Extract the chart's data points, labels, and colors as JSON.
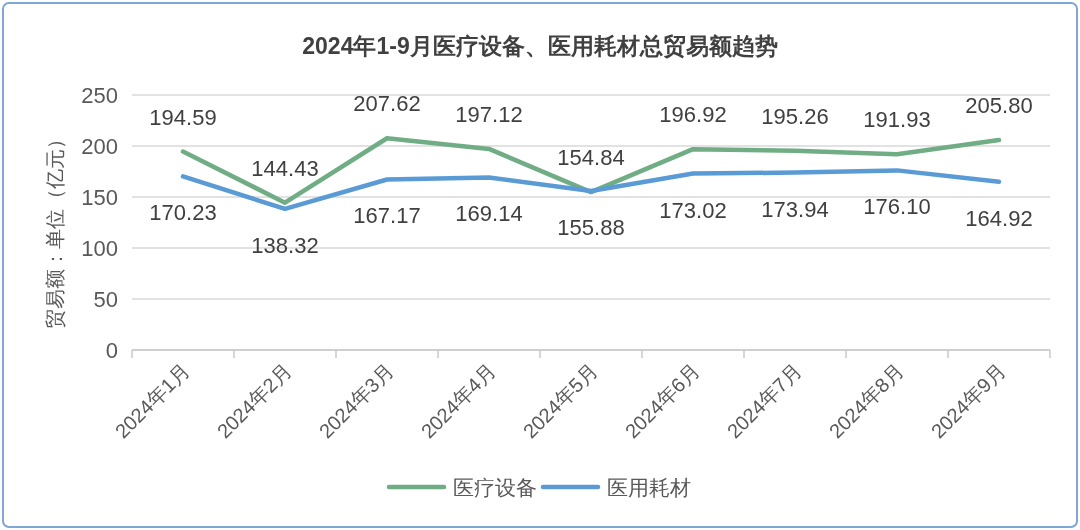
{
  "chart_data": {
    "type": "line",
    "title": "2024年1-9月医疗设备、医用耗材总贸易额趋势",
    "ylabel": "贸易额：单位（亿元）",
    "categories": [
      "2024年1月",
      "2024年2月",
      "2024年3月",
      "2024年4月",
      "2024年5月",
      "2024年6月",
      "2024年7月",
      "2024年8月",
      "2024年9月"
    ],
    "series": [
      {
        "name": "医疗设备",
        "color": "#70ad84",
        "values": [
          194.59,
          144.43,
          207.62,
          197.12,
          154.84,
          196.92,
          195.26,
          191.93,
          205.8
        ],
        "value_labels": [
          "194.59",
          "144.43",
          "207.62",
          "197.12",
          "154.84",
          "196.92",
          "195.26",
          "191.93",
          "205.80"
        ]
      },
      {
        "name": "医用耗材",
        "color": "#5b9bd5",
        "values": [
          170.23,
          138.32,
          167.17,
          169.14,
          155.88,
          173.02,
          173.94,
          176.1,
          164.92
        ],
        "value_labels": [
          "170.23",
          "138.32",
          "167.17",
          "169.14",
          "155.88",
          "173.02",
          "173.94",
          "176.10",
          "164.92"
        ]
      }
    ],
    "ylim": [
      0,
      250
    ],
    "yticks": [
      0,
      50,
      100,
      150,
      200,
      250
    ],
    "grid": "y",
    "legend": "bottom"
  }
}
